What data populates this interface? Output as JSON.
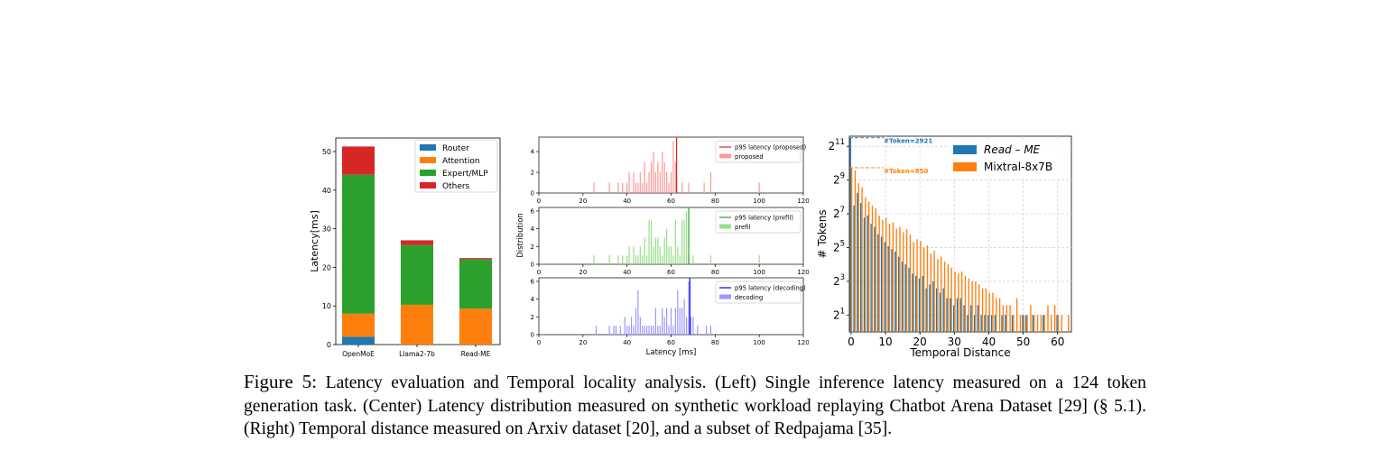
{
  "caption": {
    "label": "Figure 5:",
    "text": "Latency evaluation and Temporal locality analysis. (Left) Single inference latency measured on a 124 token generation task. (Center) Latency distribution measured on synthetic workload replaying Chatbot Arena Dataset [29] (§ 5.1). (Right) Temporal distance measured on Arxiv dataset [20], and a subset of Redpajama [35]."
  },
  "colors": {
    "router": "#1f77b4",
    "attention": "#ff7f0e",
    "expert_mlp": "#2ca02c",
    "others": "#d62728",
    "proposed": "#ff9896",
    "proposed_line": "#d62728",
    "prefil": "#98df8a",
    "prefil_line": "#2ca02c",
    "decoding": "#9999ff",
    "decoding_line": "#0000ff"
  },
  "chart_data": [
    {
      "type": "bar",
      "stacked": true,
      "categories": [
        "OpenMoE",
        "Llama2-7b",
        "Read-ME"
      ],
      "series": [
        {
          "name": "Router",
          "values": [
            2,
            0,
            0
          ]
        },
        {
          "name": "Attention",
          "values": [
            6,
            10.3,
            9.3
          ]
        },
        {
          "name": "Expert/MLP",
          "values": [
            36,
            15.5,
            12.8
          ]
        },
        {
          "name": "Others",
          "values": [
            7.3,
            1.2,
            0.3
          ]
        }
      ],
      "ylabel": "Latency[ms]",
      "yticks": [
        0,
        10,
        20,
        30,
        40,
        50
      ],
      "ylim": [
        0,
        53.5
      ],
      "legend": "top-right"
    },
    {
      "type": "bar",
      "subtype": "histogram",
      "panels": [
        {
          "name": "proposed",
          "line_label": "p95 latency (proposed)",
          "p95": 62.5,
          "values": [
            [
              25,
              1
            ],
            [
              32,
              1
            ],
            [
              36,
              1
            ],
            [
              38,
              1
            ],
            [
              40,
              1
            ],
            [
              41,
              2
            ],
            [
              43,
              2
            ],
            [
              44,
              1
            ],
            [
              45,
              1
            ],
            [
              46,
              2
            ],
            [
              47,
              1
            ],
            [
              48,
              3
            ],
            [
              49,
              1
            ],
            [
              50,
              2
            ],
            [
              51,
              3
            ],
            [
              52,
              4
            ],
            [
              53,
              2
            ],
            [
              54,
              3
            ],
            [
              55,
              2
            ],
            [
              56,
              4
            ],
            [
              57,
              3
            ],
            [
              58,
              2
            ],
            [
              59,
              1
            ],
            [
              60,
              2
            ],
            [
              61,
              5
            ],
            [
              62,
              3
            ],
            [
              65,
              1
            ],
            [
              68,
              1
            ],
            [
              75,
              1
            ],
            [
              78,
              2
            ],
            [
              100,
              1
            ]
          ]
        },
        {
          "name": "prefil",
          "line_label": "p95 latency (prefil)",
          "p95": 68,
          "values": [
            [
              25,
              1
            ],
            [
              32,
              1
            ],
            [
              36,
              1
            ],
            [
              38,
              1
            ],
            [
              40,
              1
            ],
            [
              41,
              2
            ],
            [
              43,
              2
            ],
            [
              44,
              1
            ],
            [
              45,
              1
            ],
            [
              46,
              2
            ],
            [
              47,
              1
            ],
            [
              48,
              3
            ],
            [
              49,
              1
            ],
            [
              50,
              5
            ],
            [
              51,
              5
            ],
            [
              52,
              2
            ],
            [
              53,
              3
            ],
            [
              54,
              3
            ],
            [
              55,
              2
            ],
            [
              56,
              1
            ],
            [
              57,
              3
            ],
            [
              58,
              4
            ],
            [
              59,
              2
            ],
            [
              60,
              2
            ],
            [
              61,
              1
            ],
            [
              62,
              5
            ],
            [
              63,
              2
            ],
            [
              64,
              1
            ],
            [
              65,
              5
            ],
            [
              66,
              5
            ],
            [
              67,
              6
            ],
            [
              68,
              1
            ],
            [
              70,
              1
            ],
            [
              78,
              1
            ],
            [
              100,
              1
            ]
          ]
        },
        {
          "name": "decoding",
          "line_label": "p95 latency (decoding)",
          "p95": 68.5,
          "values": [
            [
              26,
              1
            ],
            [
              32,
              1
            ],
            [
              34,
              1
            ],
            [
              35,
              1
            ],
            [
              37,
              1
            ],
            [
              39,
              2
            ],
            [
              40,
              1
            ],
            [
              41,
              1
            ],
            [
              42,
              2
            ],
            [
              43,
              1
            ],
            [
              44,
              3
            ],
            [
              45,
              5
            ],
            [
              46,
              2
            ],
            [
              47,
              1
            ],
            [
              48,
              1
            ],
            [
              49,
              1
            ],
            [
              50,
              1
            ],
            [
              51,
              1
            ],
            [
              52,
              1
            ],
            [
              53,
              3
            ],
            [
              54,
              1
            ],
            [
              55,
              1
            ],
            [
              56,
              3
            ],
            [
              57,
              2
            ],
            [
              58,
              3
            ],
            [
              59,
              1
            ],
            [
              60,
              3
            ],
            [
              61,
              1
            ],
            [
              62,
              3
            ],
            [
              63,
              5
            ],
            [
              64,
              3
            ],
            [
              65,
              3
            ],
            [
              66,
              4
            ],
            [
              67,
              2
            ],
            [
              68,
              6
            ],
            [
              69,
              2
            ],
            [
              70,
              2
            ],
            [
              72,
              1
            ],
            [
              76,
              1
            ],
            [
              78,
              1
            ]
          ]
        }
      ],
      "xlabel": "Latency [ms]",
      "ylabel": "Distribution",
      "xlim": [
        0,
        120
      ],
      "xticks": [
        0,
        20,
        40,
        60,
        80,
        100,
        120
      ],
      "ylim_top": [
        0,
        5.4
      ],
      "yticks_top": [
        0,
        2,
        4
      ],
      "ylim_other": [
        0,
        6.4
      ],
      "yticks_other": [
        0,
        2,
        4,
        6
      ],
      "legend": "top-right"
    },
    {
      "type": "bar",
      "log_scale_y": "base 2",
      "x": [
        0,
        1,
        2,
        3,
        4,
        5,
        6,
        7,
        8,
        9,
        10,
        11,
        12,
        13,
        14,
        15,
        16,
        17,
        18,
        19,
        20,
        21,
        22,
        23,
        24,
        25,
        26,
        27,
        28,
        29,
        30,
        31,
        32,
        33,
        34,
        35,
        36,
        37,
        38,
        39,
        40,
        41,
        42,
        43,
        44,
        45,
        46,
        47,
        48,
        49,
        50,
        51,
        52,
        53,
        54,
        55,
        56,
        57,
        58,
        59,
        60,
        61,
        62,
        63
      ],
      "series": [
        {
          "name": "Read – ME",
          "values": [
            2921,
            180,
            300,
            200,
            110,
            120,
            85,
            75,
            55,
            50,
            40,
            34,
            30,
            27,
            22,
            18,
            16,
            14,
            11,
            10,
            9,
            10,
            6,
            7,
            8,
            6,
            5,
            6,
            4,
            4,
            3,
            4,
            4,
            3,
            2,
            3,
            2,
            3,
            2,
            2,
            2,
            2,
            2,
            1,
            2,
            2,
            1,
            2,
            1,
            1,
            2,
            2,
            1,
            2,
            1,
            1,
            2,
            1,
            1,
            1,
            2,
            1,
            1,
            1
          ]
        },
        {
          "name": "Mixtral-8x7B",
          "values": [
            850,
            760,
            450,
            380,
            250,
            210,
            180,
            160,
            120,
            100,
            110,
            85,
            90,
            70,
            75,
            60,
            68,
            55,
            40,
            45,
            42,
            32,
            35,
            25,
            28,
            20,
            22,
            18,
            16,
            14,
            12,
            11,
            12,
            10,
            9,
            8,
            8,
            7,
            6,
            6,
            5,
            5,
            4,
            4,
            3,
            3,
            3,
            2,
            4,
            2,
            2,
            2,
            3,
            2,
            2,
            2,
            2,
            3,
            2,
            3,
            2,
            2,
            1,
            2
          ]
        }
      ],
      "annotations": [
        "#Token=2921",
        "#Token=850"
      ],
      "xlabel": "Temporal Distance",
      "ylabel": "# Tokens",
      "xticks": [
        0,
        10,
        20,
        30,
        40,
        50,
        60
      ],
      "yticks": [
        {
          "base": "2",
          "exp": "1"
        },
        {
          "base": "2",
          "exp": "3"
        },
        {
          "base": "2",
          "exp": "5"
        },
        {
          "base": "2",
          "exp": "7"
        },
        {
          "base": "2",
          "exp": "9"
        },
        {
          "base": "2",
          "exp": "11"
        }
      ],
      "xlim": [
        -0.5,
        64
      ],
      "ylim_log2": [
        0,
        11.6
      ],
      "grid": true,
      "legend": "top-right"
    }
  ]
}
